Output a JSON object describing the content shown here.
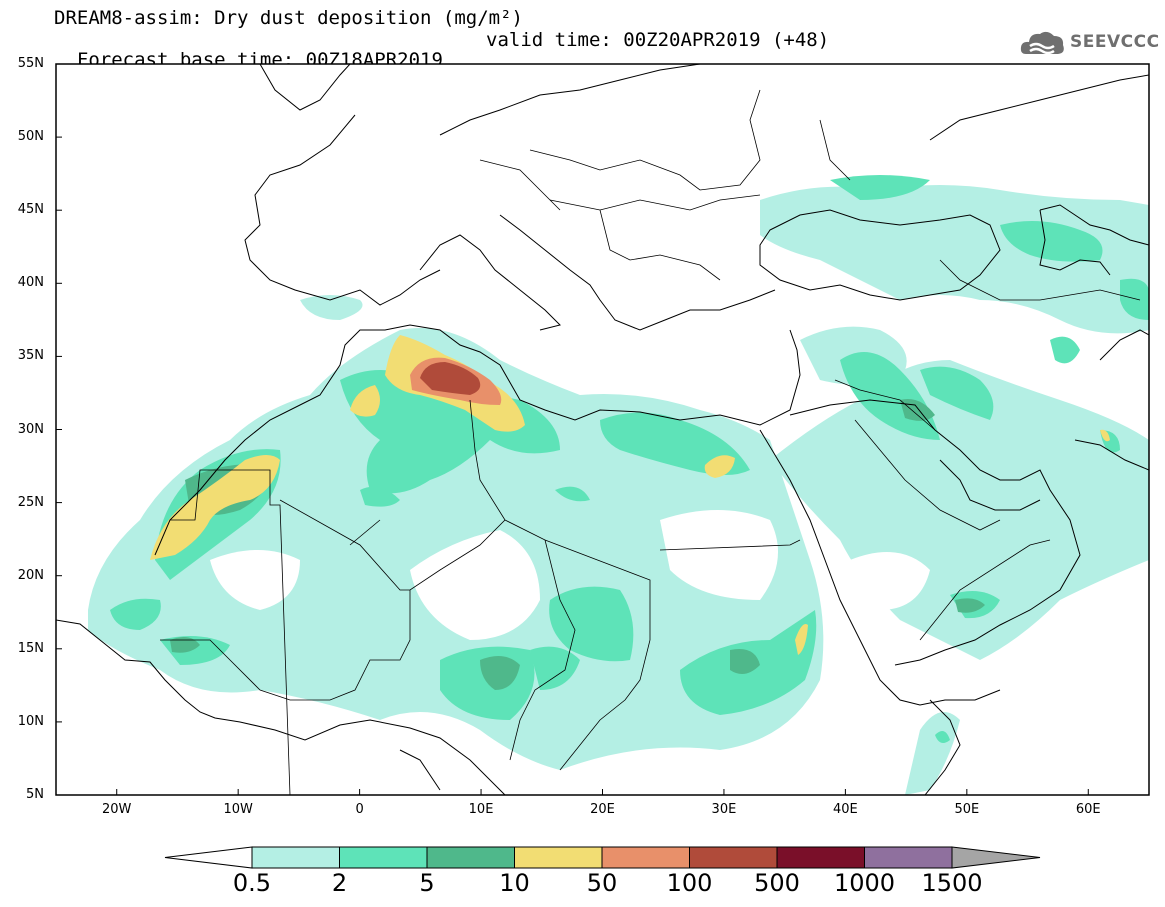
{
  "header": {
    "title_line1": "DREAM8-assim: Dry dust deposition (mg/m²)",
    "title_line2_left": "Forecast base time: 00Z18APR2019",
    "title_line2_right": "valid time: 00Z20APR2019 (+48)",
    "logo_text": "SEEVCCC",
    "logo_icon": "cloud-logo-icon"
  },
  "map": {
    "lat_labels": [
      "55N",
      "50N",
      "45N",
      "40N",
      "35N",
      "30N",
      "25N",
      "20N",
      "15N",
      "10N",
      "5N"
    ],
    "lon_labels": [
      "20W",
      "10W",
      "0",
      "10E",
      "20E",
      "30E",
      "40E",
      "50E",
      "60E"
    ],
    "lon_range": [
      -25,
      65
    ],
    "lat_range": [
      5,
      55
    ]
  },
  "colorbar": {
    "labels": [
      "0.5",
      "2",
      "5",
      "10",
      "50",
      "100",
      "500",
      "1000",
      "1500"
    ],
    "colors": [
      "#b4efe4",
      "#5ee3b8",
      "#4fb88b",
      "#f2dd73",
      "#e8906a",
      "#b04b3a",
      "#7a0f29",
      "#8f709e",
      "#a5a5a5"
    ],
    "under_color": "#ffffff",
    "over_color": "#a5a5a5"
  }
}
